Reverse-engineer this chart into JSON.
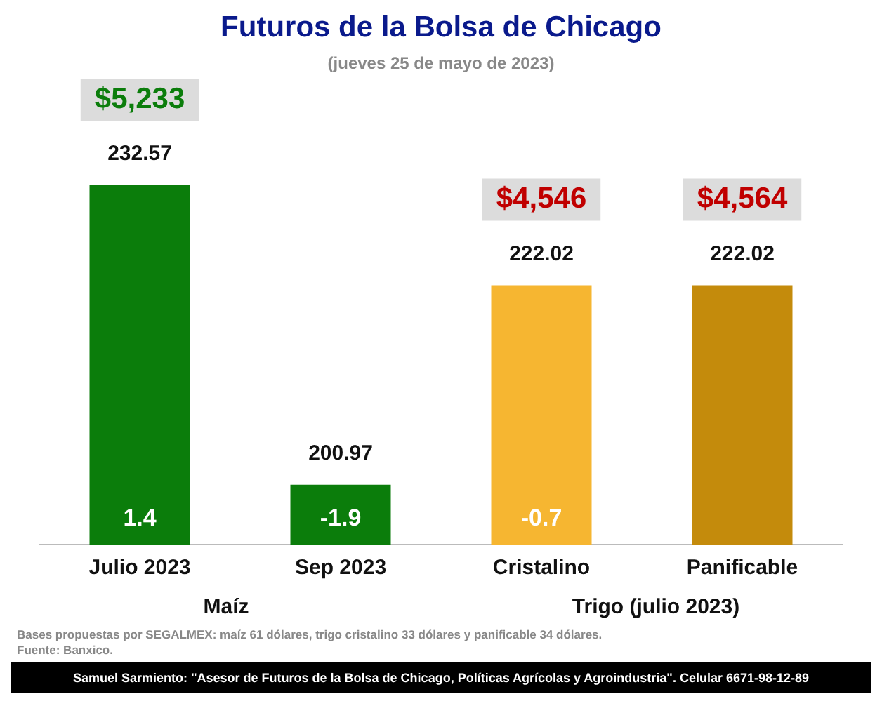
{
  "chart_data": {
    "type": "bar",
    "title": "Futuros de la Bolsa de Chicago",
    "subtitle": "(jueves 25 de mayo de 2023)",
    "categories": [
      "Julio 2023",
      "Sep 2023",
      "Cristalino",
      "Panificable"
    ],
    "values": [
      232.57,
      200.97,
      222.02,
      222.02
    ],
    "colors": [
      "#0b7d0b",
      "#0b7d0b",
      "#f6b631",
      "#c48b0c"
    ],
    "data_labels": true,
    "legend": false,
    "grid": false,
    "annotations": [
      "$5,233",
      "$4,546",
      "$4,564",
      "1.4",
      "-1.9",
      "-0.7",
      "Maíz",
      "Trigo (julio 2023)",
      "Bases propuestas por SEGALMEX: maíz 61 dólares, trigo cristalino 33 dólares y panificable 34 dólares.",
      "Fuente: Banxico.",
      "Samuel Sarmiento: \"Asesor de Futuros de la Bolsa de Chicago, Políticas Agrícolas y Agroindustria\". Celular 6671-98-12-89"
    ]
  }
}
